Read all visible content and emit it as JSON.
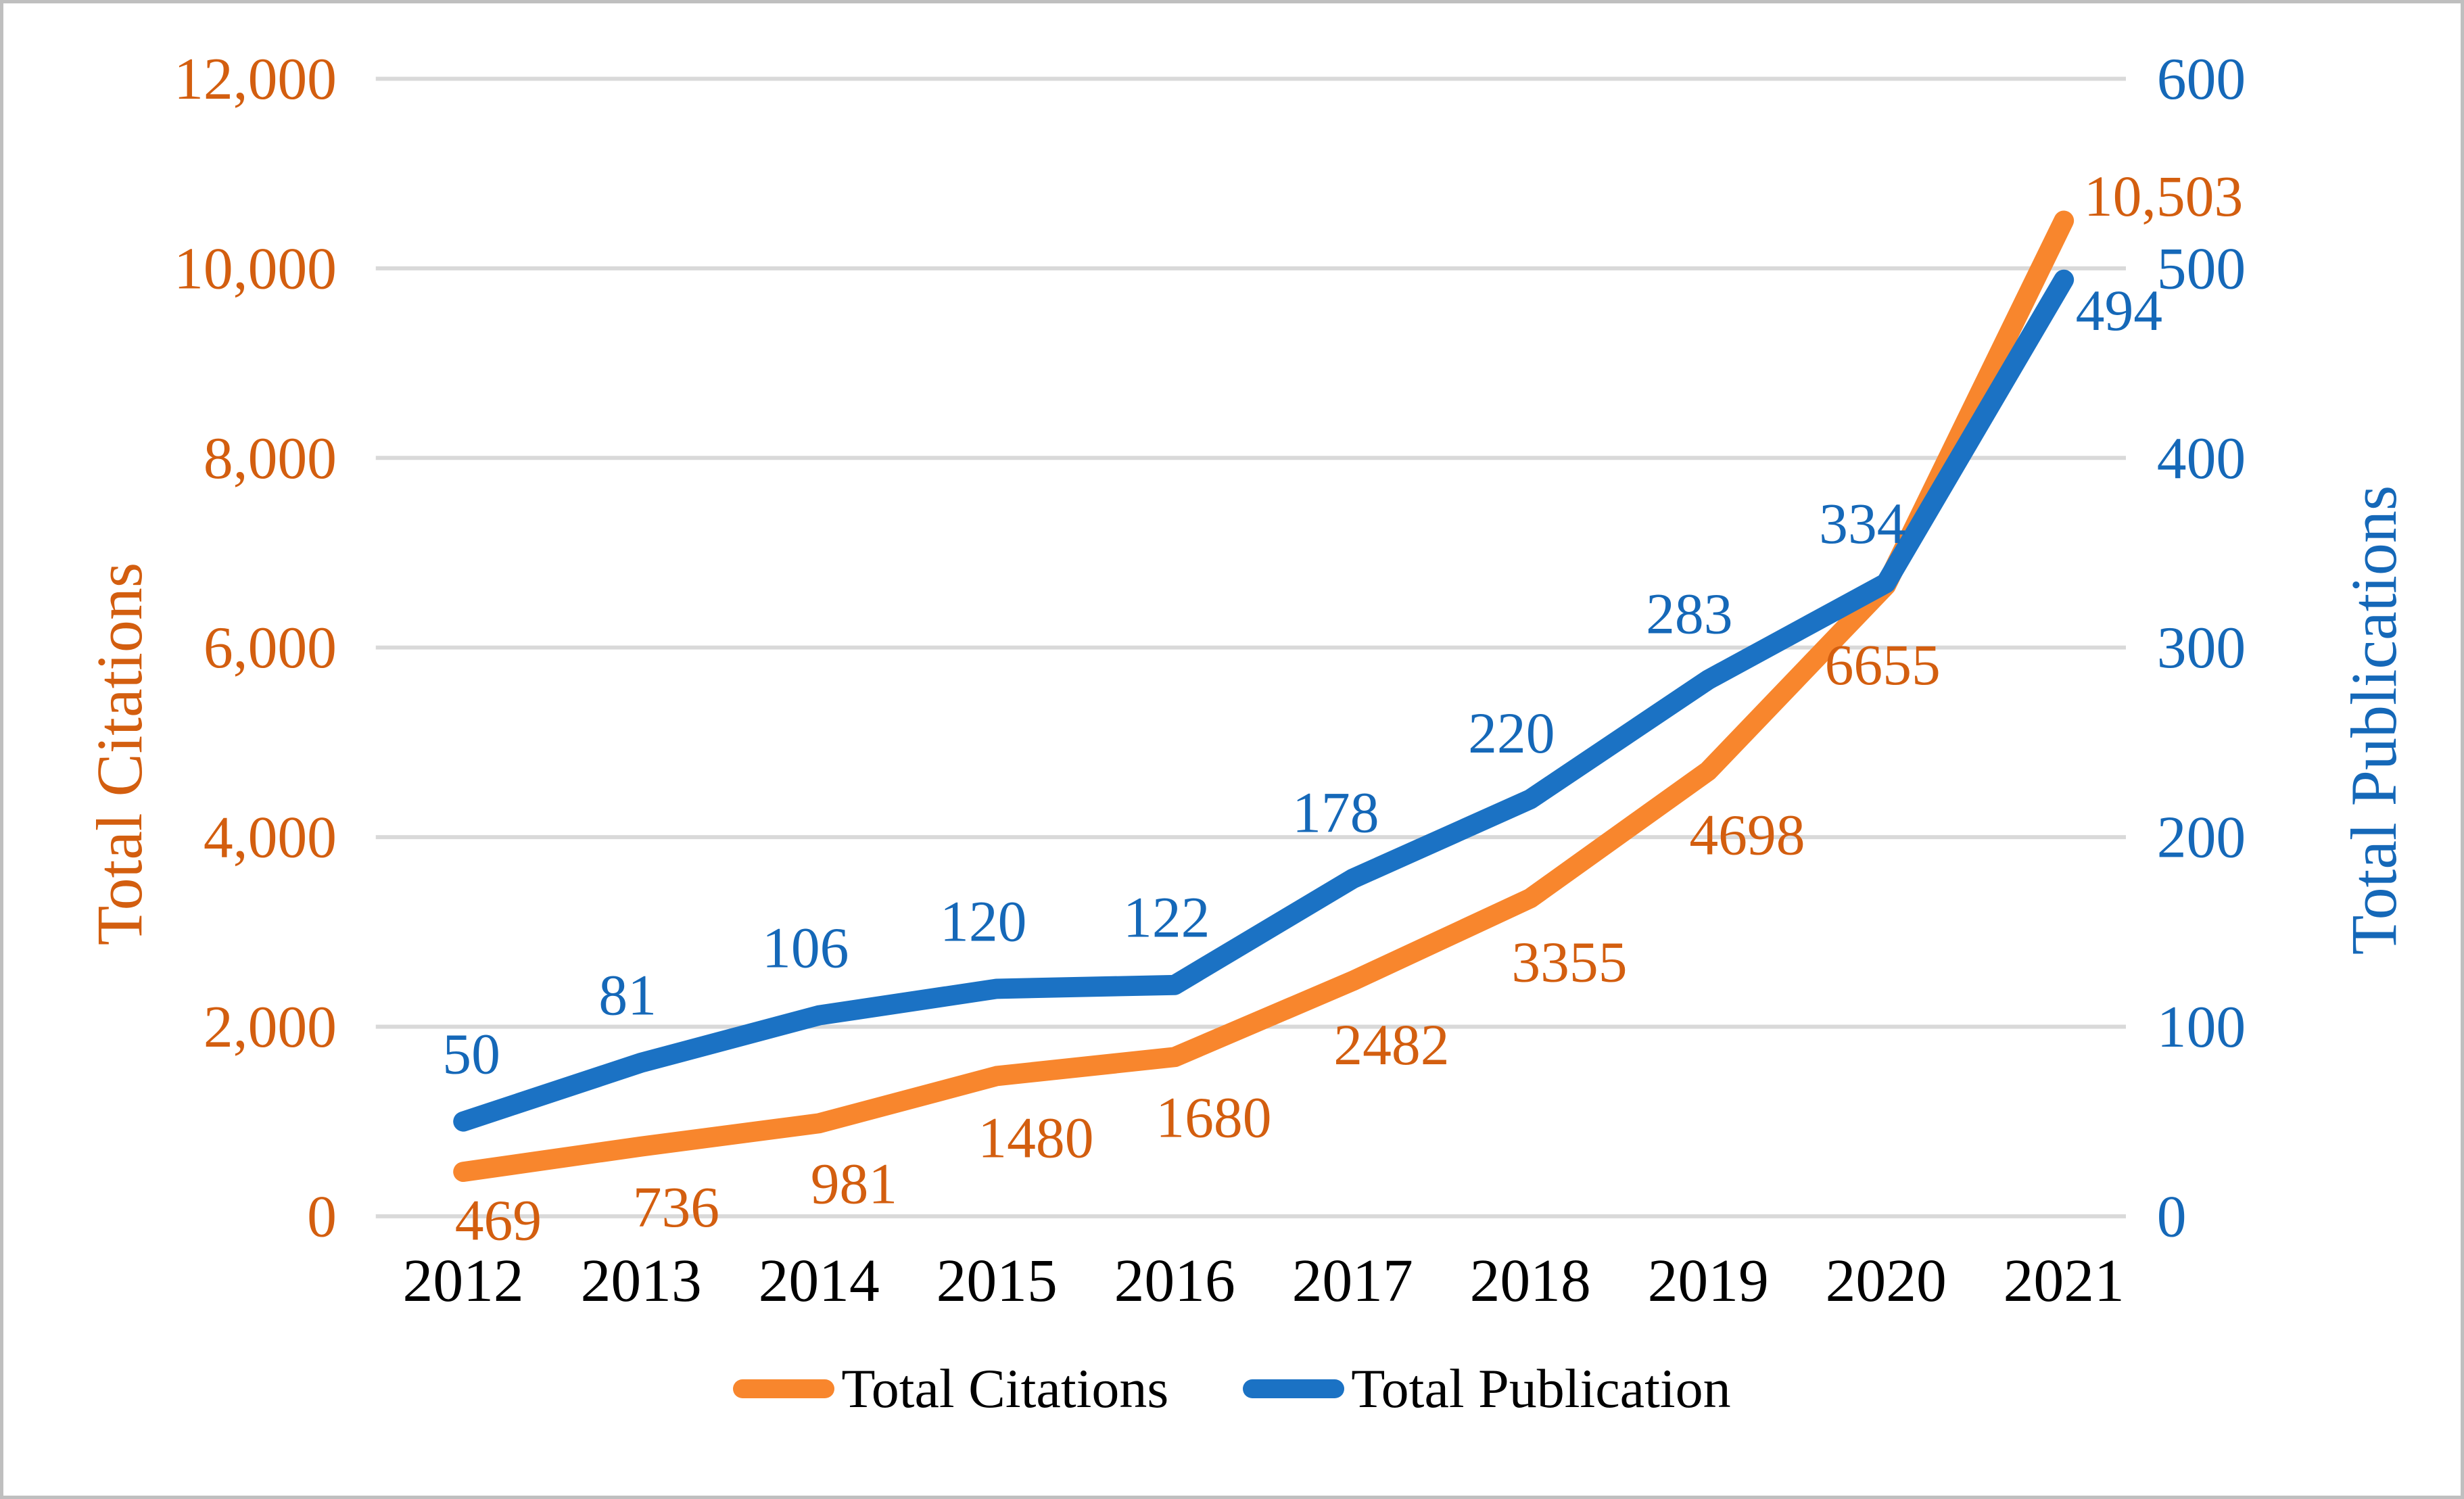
{
  "chart_data": {
    "type": "line",
    "categories": [
      "2012",
      "2013",
      "2014",
      "2015",
      "2016",
      "2017",
      "2018",
      "2019",
      "2020",
      "2021"
    ],
    "series": [
      {
        "name": "Total Citations",
        "axis": "left",
        "values": [
          469,
          736,
          981,
          1480,
          1680,
          2482,
          3355,
          4698,
          6655,
          10503
        ],
        "point_labels": [
          "469",
          "736",
          "981",
          "1480",
          "1680",
          "2482",
          "3355",
          "4698",
          "6655",
          "10,503"
        ],
        "line_color": "#f8862d",
        "label_color": "#d35e0f"
      },
      {
        "name": "Total Publication",
        "axis": "right",
        "values": [
          50,
          81,
          106,
          120,
          122,
          178,
          220,
          283,
          334,
          494
        ],
        "point_labels": [
          "50",
          "81",
          "106",
          "120",
          "122",
          "178",
          "220",
          "283",
          "334",
          "494"
        ],
        "line_color": "#1b72c4",
        "label_color": "#1568b8"
      }
    ],
    "left_axis": {
      "title": "Total Citations",
      "min": 0,
      "max": 12000,
      "step": 2000,
      "tick_labels": [
        "0",
        "2,000",
        "4,000",
        "6,000",
        "8,000",
        "10,000",
        "12,000"
      ]
    },
    "right_axis": {
      "title": "Total Publications",
      "min": 0,
      "max": 600,
      "step": 100,
      "tick_labels": [
        "0",
        "100",
        "200",
        "300",
        "400",
        "500",
        "600"
      ]
    },
    "legend_items": [
      {
        "label": "Total Citations",
        "color": "#f8862d"
      },
      {
        "label": "Total Publication",
        "color": "#1b72c4"
      }
    ],
    "grid": true,
    "legend_position": "bottom",
    "colors": {
      "gridline": "#d9d9d9",
      "x_label": "#000000",
      "frame_border": "#bfbfbf",
      "background": "#ffffff"
    }
  }
}
